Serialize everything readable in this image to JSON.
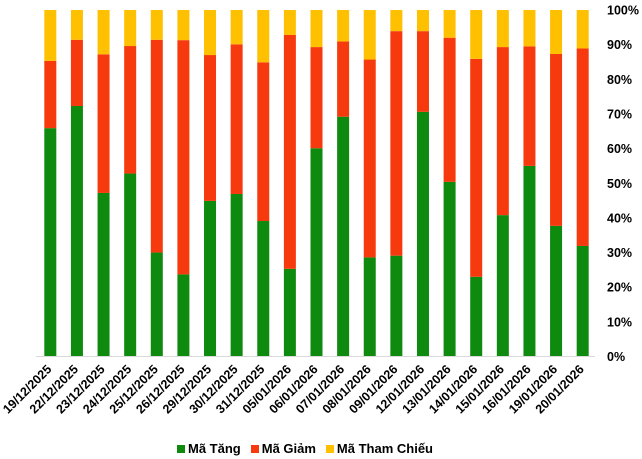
{
  "chart_data": {
    "type": "bar",
    "stacked": true,
    "stack_mode": "percent",
    "title": "",
    "xlabel": "",
    "ylabel": "",
    "ylim": [
      0,
      100
    ],
    "grid": false,
    "legend_position": "bottom",
    "axis_line_color": "#d9d9d9",
    "text_color": "#000000",
    "background_color": "#ffffff",
    "y_tick_labels": [
      "0%",
      "10%",
      "20%",
      "30%",
      "40%",
      "50%",
      "60%",
      "70%",
      "80%",
      "90%",
      "100%"
    ],
    "categories": [
      "19/12/2025",
      "22/12/2025",
      "23/12/2025",
      "24/12/2025",
      "25/12/2025",
      "26/12/2025",
      "29/12/2025",
      "30/12/2025",
      "31/12/2025",
      "05/01/2026",
      "06/01/2026",
      "07/01/2026",
      "08/01/2026",
      "09/01/2026",
      "12/01/2026",
      "13/01/2026",
      "14/01/2026",
      "15/01/2026",
      "16/01/2026",
      "19/01/2026",
      "20/01/2026"
    ],
    "series": [
      {
        "name": "Mã Tăng",
        "color": "#0e8a0e",
        "values": [
          65.9,
          72.3,
          47.2,
          52.8,
          30.0,
          23.7,
          44.9,
          46.9,
          39.1,
          25.3,
          60.1,
          69.2,
          28.6,
          29.1,
          70.6,
          50.4,
          23.0,
          40.8,
          55.0,
          37.7,
          31.9
        ]
      },
      {
        "name": "Mã Giảm",
        "color": "#f63a0e",
        "values": [
          19.4,
          19.1,
          40.0,
          36.8,
          61.4,
          67.6,
          42.1,
          43.2,
          45.8,
          67.5,
          29.2,
          21.7,
          57.1,
          64.8,
          23.3,
          41.6,
          62.9,
          48.5,
          34.5,
          49.6,
          57.0
        ]
      },
      {
        "name": "Mã Tham Chiếu",
        "color": "#ffc000",
        "values": [
          14.7,
          8.6,
          12.8,
          10.4,
          8.6,
          8.7,
          13.0,
          9.9,
          15.1,
          7.2,
          10.7,
          9.1,
          14.3,
          6.1,
          6.1,
          8.0,
          14.1,
          10.7,
          10.5,
          12.7,
          11.1
        ]
      }
    ]
  }
}
